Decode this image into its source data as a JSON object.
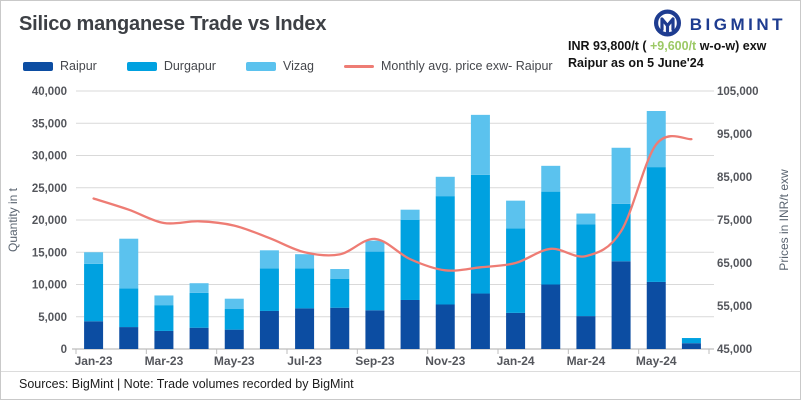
{
  "header": {
    "title": "Silico manganese Trade vs Index",
    "brand": "BIGMINT",
    "brand_color": "#1e3c90",
    "price_note": {
      "prefix": "INR 93,800/t (",
      "change": "+9,600/t",
      "suffix": " w-o-w) exw",
      "line2": "Raipur as on 5 June'24",
      "change_color": "#9CC965"
    }
  },
  "chart_data": {
    "type": "bar",
    "stacked": true,
    "grid": true,
    "legend_position": "top-left",
    "categories": [
      "Jan-23",
      "Feb-23",
      "Mar-23",
      "Apr-23",
      "May-23",
      "Jun-23",
      "Jul-23",
      "Aug-23",
      "Sep-23",
      "Oct-23",
      "Nov-23",
      "Dec-23",
      "Jan-24",
      "Feb-24",
      "Mar-24",
      "Apr-24",
      "May-24",
      "Jun-24"
    ],
    "x_label_every": 2,
    "series": [
      {
        "name": "Raipur",
        "type": "bar",
        "color": "#0C4DA2",
        "axis": "left",
        "values": [
          4300,
          3400,
          2800,
          3300,
          3000,
          5900,
          6300,
          6400,
          6000,
          7600,
          6900,
          8600,
          5600,
          10000,
          5100,
          13600,
          10400,
          900
        ]
      },
      {
        "name": "Durgapur",
        "type": "bar",
        "color": "#00A1E0",
        "axis": "left",
        "values": [
          8900,
          6000,
          4000,
          5400,
          3200,
          6600,
          6200,
          4500,
          9100,
          12400,
          16800,
          18400,
          13100,
          14400,
          14200,
          8900,
          17800,
          800
        ]
      },
      {
        "name": "Vizag",
        "type": "bar",
        "color": "#5BC2EE",
        "axis": "left",
        "values": [
          1800,
          7700,
          1500,
          1500,
          1600,
          2800,
          2200,
          1500,
          1700,
          1600,
          3000,
          9300,
          4300,
          4000,
          1700,
          8700,
          8700,
          0
        ]
      },
      {
        "name": "Monthly avg. price exw- Raipur",
        "type": "line",
        "color": "#EE7C74",
        "axis": "right",
        "values": [
          80000,
          77400,
          74300,
          74700,
          73700,
          70800,
          67500,
          67000,
          70600,
          65900,
          63300,
          64000,
          65000,
          68300,
          66600,
          72400,
          92600,
          93800
        ]
      }
    ],
    "left_axis": {
      "label": "Quantity in t",
      "min": 0,
      "max": 40000,
      "step": 5000
    },
    "right_axis": {
      "label": "Prices in INR/t exw",
      "min": 45000,
      "max": 105000,
      "step": 10000
    }
  },
  "footer": {
    "sources": "Sources: BigMint | Note: Trade volumes recorded by BigMint"
  }
}
